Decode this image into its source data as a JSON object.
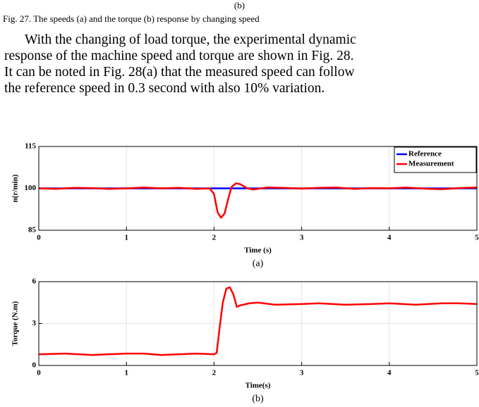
{
  "top_label": "(b)",
  "caption": "Fig. 27. The speeds (a) and the torque (b) response by changing speed",
  "paragraph": [
    "With the changing of load torque, the experimental dynamic",
    "response of the machine speed and torque are shown in Fig. 28.",
    "It can be noted in Fig. 28(a) that the measured speed can follow",
    "the reference speed in 0.3 second with also 10% variation."
  ],
  "chart_data": [
    {
      "type": "line",
      "xlabel": "Time (s)",
      "ylabel": "n(r/min)",
      "panel_label": "(a)",
      "xlim": [
        0,
        5
      ],
      "xticks": [
        0,
        1,
        2,
        3,
        4,
        5
      ],
      "ylim": [
        85,
        115
      ],
      "yticks": [
        85,
        100,
        115
      ],
      "grid": true,
      "legend": "upper right",
      "series": [
        {
          "name": "Reference",
          "color": "#0000ff",
          "x": [
            0,
            5
          ],
          "values": [
            100,
            100
          ]
        },
        {
          "name": "Measurement",
          "color": "#ff0000",
          "x": [
            0,
            0.2,
            0.4,
            0.6,
            0.8,
            1.0,
            1.2,
            1.4,
            1.6,
            1.8,
            1.95,
            2.0,
            2.04,
            2.08,
            2.12,
            2.16,
            2.2,
            2.25,
            2.3,
            2.38,
            2.45,
            2.6,
            2.8,
            3.0,
            3.2,
            3.4,
            3.6,
            3.8,
            4.0,
            4.2,
            4.4,
            4.6,
            4.8,
            5.0
          ],
          "values": [
            100,
            99.8,
            100.2,
            100.1,
            99.8,
            100,
            100.3,
            100,
            100.2,
            99.8,
            100,
            98,
            91.5,
            89.5,
            91,
            96,
            100.5,
            101.8,
            101.5,
            100,
            99.6,
            100.3,
            100.2,
            99.9,
            100.2,
            100.3,
            99.8,
            100.1,
            100,
            100.3,
            99.9,
            99.7,
            100.1,
            100.3
          ]
        }
      ]
    },
    {
      "type": "line",
      "xlabel": "Time(s)",
      "ylabel": "Torque (N.m)",
      "panel_label": "(b)",
      "xlim": [
        0,
        5
      ],
      "xticks": [
        0,
        1,
        2,
        3,
        4,
        5
      ],
      "ylim": [
        0,
        6
      ],
      "yticks": [
        0,
        3,
        6
      ],
      "grid": true,
      "series": [
        {
          "name": "Torque",
          "color": "#ff0000",
          "x": [
            0,
            0.3,
            0.6,
            0.8,
            1.0,
            1.2,
            1.4,
            1.6,
            1.8,
            2.0,
            2.03,
            2.06,
            2.1,
            2.14,
            2.18,
            2.22,
            2.26,
            2.3,
            2.4,
            2.5,
            2.7,
            3.0,
            3.2,
            3.5,
            3.8,
            4.0,
            4.3,
            4.6,
            4.8,
            5.0
          ],
          "values": [
            0.8,
            0.85,
            0.75,
            0.8,
            0.85,
            0.85,
            0.75,
            0.8,
            0.85,
            0.8,
            0.9,
            2.5,
            4.5,
            5.5,
            5.6,
            5.1,
            4.2,
            4.3,
            4.45,
            4.5,
            4.35,
            4.4,
            4.45,
            4.35,
            4.4,
            4.45,
            4.35,
            4.45,
            4.45,
            4.4
          ]
        }
      ]
    }
  ]
}
